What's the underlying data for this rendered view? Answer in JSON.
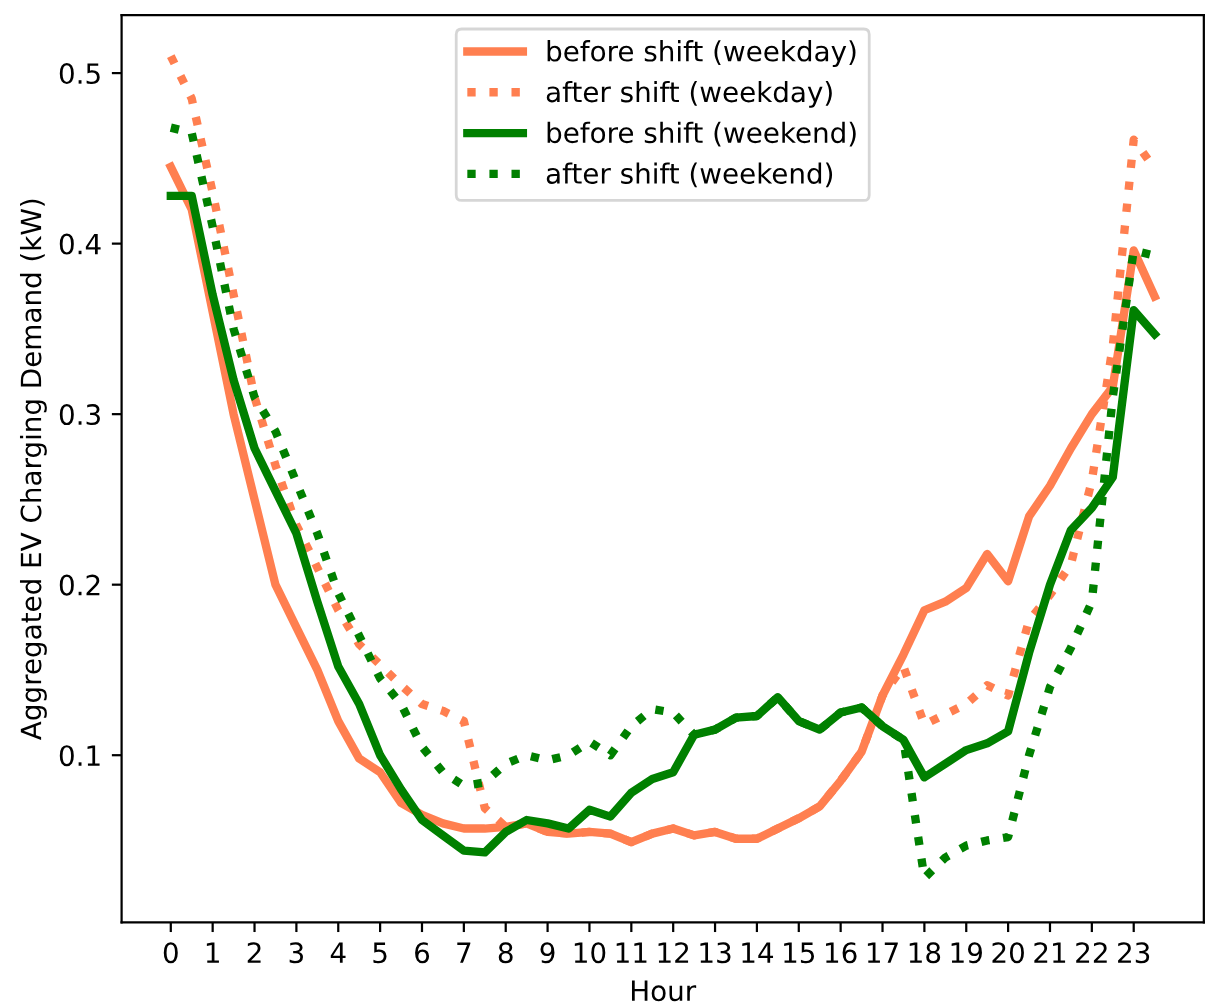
{
  "chart_data": {
    "type": "line",
    "xlabel": "Hour",
    "ylabel": "Aggregated EV Charging Demand (kW)",
    "x": [
      0,
      0.5,
      1,
      1.5,
      2,
      2.5,
      3,
      3.5,
      4,
      4.5,
      5,
      5.5,
      6,
      6.5,
      7,
      7.5,
      8,
      8.5,
      9,
      9.5,
      10,
      10.5,
      11,
      11.5,
      12,
      12.5,
      13,
      13.5,
      14,
      14.5,
      15,
      15.5,
      16,
      16.5,
      17,
      17.5,
      18,
      18.5,
      19,
      19.5,
      20,
      20.5,
      21,
      21.5,
      22,
      22.5,
      23,
      23.5
    ],
    "series": [
      {
        "name": "before shift (weekday)",
        "color": "#ff7f50",
        "line_style": "solid",
        "values": [
          0.445,
          0.42,
          0.36,
          0.3,
          0.25,
          0.2,
          0.175,
          0.15,
          0.12,
          0.098,
          0.09,
          0.072,
          0.065,
          0.06,
          0.057,
          0.057,
          0.058,
          0.06,
          0.055,
          0.054,
          0.055,
          0.054,
          0.049,
          0.054,
          0.057,
          0.053,
          0.055,
          0.051,
          0.051,
          0.057,
          0.063,
          0.07,
          0.085,
          0.102,
          0.135,
          0.159,
          0.185,
          0.19,
          0.198,
          0.218,
          0.202,
          0.24,
          0.258,
          0.28,
          0.3,
          0.316,
          0.396,
          0.369
        ]
      },
      {
        "name": "after shift (weekday)",
        "color": "#ff7f50",
        "line_style": "dotted",
        "values": [
          0.51,
          0.485,
          0.43,
          0.37,
          0.31,
          0.27,
          0.235,
          0.21,
          0.185,
          0.165,
          0.153,
          0.141,
          0.13,
          0.126,
          0.12,
          0.069,
          0.058,
          0.06,
          0.055,
          0.054,
          0.055,
          0.054,
          0.049,
          0.054,
          0.057,
          0.053,
          0.055,
          0.051,
          0.051,
          0.057,
          0.063,
          0.07,
          0.085,
          0.102,
          0.135,
          0.152,
          0.118,
          0.124,
          0.13,
          0.141,
          0.135,
          0.179,
          0.194,
          0.212,
          0.261,
          0.34,
          0.461,
          0.444
        ]
      },
      {
        "name": "before shift (weekend)",
        "color": "#008000",
        "line_style": "solid",
        "values": [
          0.428,
          0.428,
          0.37,
          0.32,
          0.28,
          0.255,
          0.23,
          0.19,
          0.152,
          0.13,
          0.1,
          0.08,
          0.062,
          0.053,
          0.044,
          0.043,
          0.055,
          0.062,
          0.06,
          0.057,
          0.068,
          0.064,
          0.078,
          0.086,
          0.09,
          0.112,
          0.115,
          0.122,
          0.123,
          0.134,
          0.12,
          0.115,
          0.125,
          0.128,
          0.117,
          0.109,
          0.087,
          0.095,
          0.103,
          0.107,
          0.114,
          0.16,
          0.2,
          0.232,
          0.245,
          0.263,
          0.361,
          0.347
        ]
      },
      {
        "name": "after shift (weekend)",
        "color": "#008000",
        "line_style": "dotted",
        "values": [
          0.468,
          0.465,
          0.41,
          0.35,
          0.31,
          0.29,
          0.26,
          0.23,
          0.195,
          0.17,
          0.145,
          0.13,
          0.105,
          0.09,
          0.082,
          0.084,
          0.095,
          0.1,
          0.097,
          0.1,
          0.108,
          0.1,
          0.117,
          0.127,
          0.125,
          0.112,
          0.115,
          0.122,
          0.123,
          0.134,
          0.12,
          0.115,
          0.125,
          0.128,
          0.117,
          0.109,
          0.028,
          0.04,
          0.047,
          0.05,
          0.052,
          0.1,
          0.14,
          0.163,
          0.19,
          0.31,
          0.396,
          0.393
        ]
      }
    ],
    "xlim": [
      -1.175,
      24.675
    ],
    "ylim": [
      0.002,
      0.534
    ],
    "xticks": [
      0,
      1,
      2,
      3,
      4,
      5,
      6,
      7,
      8,
      9,
      10,
      11,
      12,
      13,
      14,
      15,
      16,
      17,
      18,
      19,
      20,
      21,
      22,
      23
    ],
    "yticks": [
      0.1,
      0.2,
      0.3,
      0.4,
      0.5
    ],
    "grid": false,
    "legend": "top"
  }
}
